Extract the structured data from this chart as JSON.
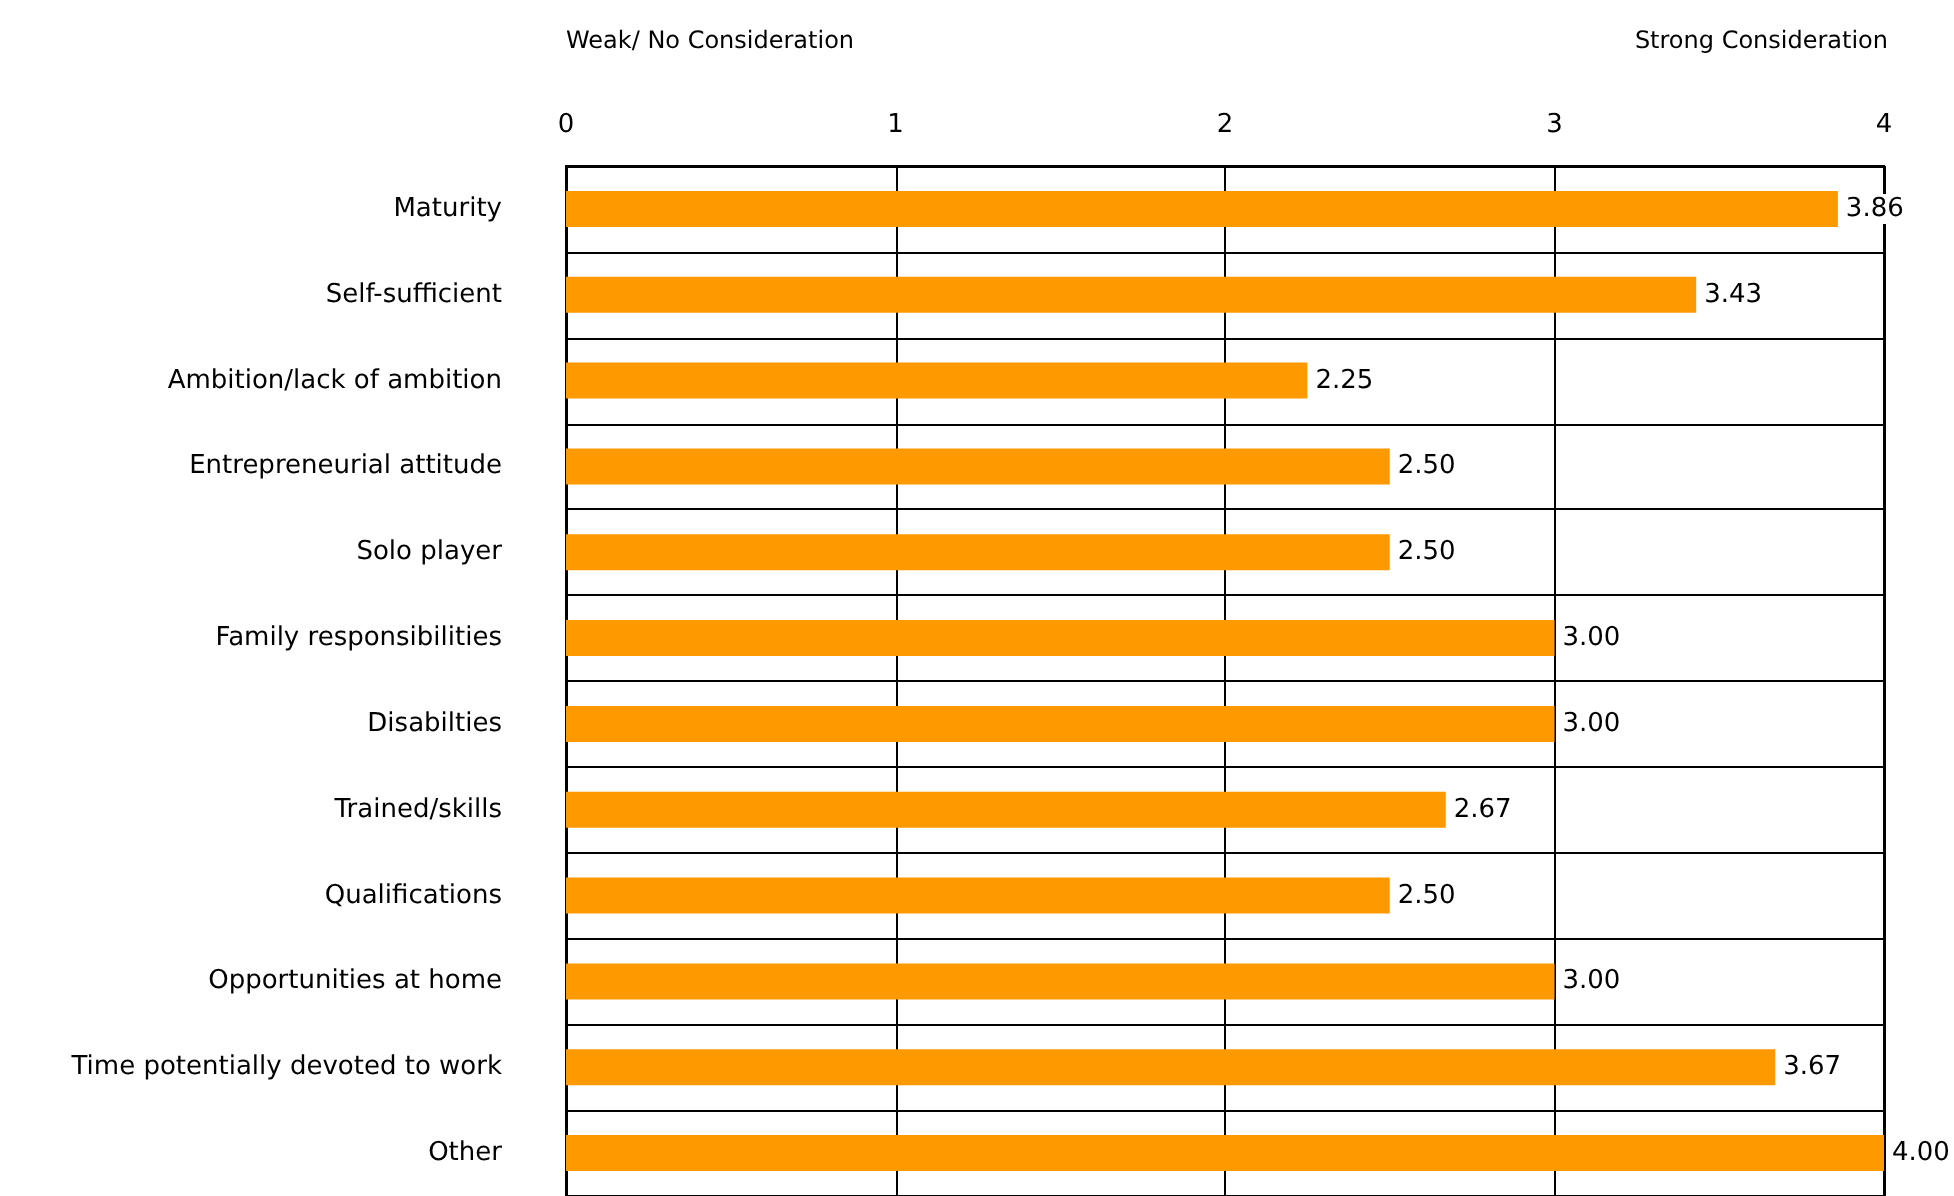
{
  "chart_data": {
    "type": "bar",
    "orientation": "horizontal",
    "categories": [
      "Maturity",
      "Self-sufficient",
      "Ambition/lack of ambition",
      "Entrepreneurial attitude",
      "Solo player",
      "Family responsibilities",
      "Disabilties",
      "Trained/skills",
      "Qualifications",
      "Opportunities at home",
      "Time potentially devoted to work",
      "Other"
    ],
    "series": [
      {
        "color": "#ff9900",
        "values": [
          3.86,
          3.43,
          2.25,
          2.5,
          2.5,
          3,
          3,
          2.67,
          2.5,
          3,
          3.67,
          4
        ],
        "value_labels": [
          "3.86",
          "3.43",
          "2.25",
          "2.50",
          "2.50",
          "3.00",
          "3.00",
          "2.67",
          "2.50",
          "3.00",
          "3.67",
          "4.00"
        ]
      }
    ],
    "xlim": [
      0,
      4
    ],
    "xticks": [
      0,
      1,
      2,
      3,
      4
    ],
    "grid": true,
    "annotations": [
      "Weak/ No Consideration",
      "Strong Consideration"
    ]
  }
}
